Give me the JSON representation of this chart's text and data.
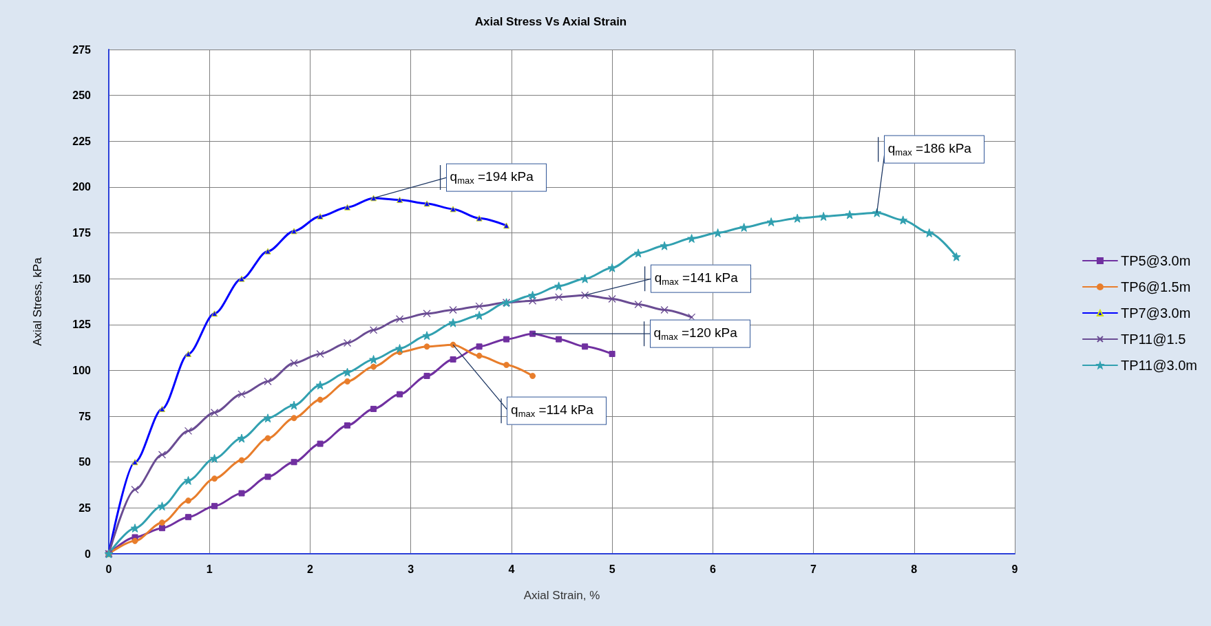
{
  "chart_data": {
    "type": "line",
    "title": "Axial Stress Vs Axial Strain",
    "xlabel": "Axial Strain, %",
    "ylabel": "Axial Stress, kPa",
    "xlim": [
      0,
      9
    ],
    "xticks": [
      0,
      1,
      2,
      3,
      4,
      5,
      6,
      7,
      8,
      9
    ],
    "ylim": [
      0,
      275
    ],
    "yticks": [
      0,
      25,
      50,
      75,
      100,
      125,
      150,
      175,
      200,
      225,
      250,
      275
    ],
    "grid": true,
    "legend": "right",
    "line_style": "solid",
    "series": [
      {
        "name": "TP5@3.0m",
        "color": "#7030a0",
        "marker": "square",
        "x": [
          0,
          0.26,
          0.53,
          0.79,
          1.05,
          1.32,
          1.58,
          1.84,
          2.1,
          2.37,
          2.63,
          2.89,
          3.16,
          3.42,
          3.68,
          3.95,
          4.21,
          4.47,
          4.73,
          5.0
        ],
        "values": [
          0,
          9,
          14,
          20,
          26,
          33,
          42,
          50,
          60,
          70,
          79,
          87,
          97,
          106,
          113,
          117,
          120,
          117,
          113,
          109
        ]
      },
      {
        "name": "TP6@1.5m",
        "color": "#e87d2b",
        "marker": "circle",
        "x": [
          0,
          0.26,
          0.53,
          0.79,
          1.05,
          1.32,
          1.58,
          1.84,
          2.1,
          2.37,
          2.63,
          2.89,
          3.16,
          3.42,
          3.68,
          3.95,
          4.21
        ],
        "values": [
          0,
          7,
          17,
          29,
          41,
          51,
          63,
          74,
          84,
          94,
          102,
          110,
          113,
          114,
          108,
          103,
          97
        ]
      },
      {
        "name": "TP7@3.0m",
        "color": "#0000ff",
        "marker": "triangle",
        "x": [
          0,
          0.26,
          0.53,
          0.79,
          1.05,
          1.32,
          1.58,
          1.84,
          2.1,
          2.37,
          2.63,
          2.89,
          3.16,
          3.42,
          3.68,
          3.95
        ],
        "values": [
          0,
          50,
          79,
          109,
          131,
          150,
          165,
          176,
          184,
          189,
          194,
          193,
          191,
          188,
          183,
          179
        ]
      },
      {
        "name": "TP11@1.5",
        "color": "#6a4c93",
        "marker": "cross",
        "x": [
          0,
          0.26,
          0.53,
          0.79,
          1.05,
          1.32,
          1.58,
          1.84,
          2.1,
          2.37,
          2.63,
          2.89,
          3.16,
          3.42,
          3.68,
          3.95,
          4.21,
          4.47,
          4.73,
          5.0,
          5.26,
          5.52,
          5.79
        ],
        "values": [
          0,
          35,
          54,
          67,
          77,
          87,
          94,
          104,
          109,
          115,
          122,
          128,
          131,
          133,
          135,
          137,
          138,
          140,
          141,
          139,
          136,
          133,
          129
        ]
      },
      {
        "name": "TP11@3.0m",
        "color": "#31a0b0",
        "marker": "star",
        "x": [
          0,
          0.26,
          0.53,
          0.79,
          1.05,
          1.32,
          1.58,
          1.84,
          2.1,
          2.37,
          2.63,
          2.89,
          3.16,
          3.42,
          3.68,
          3.95,
          4.21,
          4.47,
          4.73,
          5.0,
          5.26,
          5.52,
          5.79,
          6.05,
          6.31,
          6.58,
          6.84,
          7.1,
          7.36,
          7.63,
          7.89,
          8.15,
          8.42
        ],
        "values": [
          0,
          14,
          26,
          40,
          52,
          63,
          74,
          81,
          92,
          99,
          106,
          112,
          119,
          126,
          130,
          137,
          141,
          146,
          150,
          156,
          164,
          168,
          172,
          175,
          178,
          181,
          183,
          184,
          185,
          186,
          182,
          175,
          162
        ]
      }
    ],
    "annotations": [
      {
        "text": "q$_{max}$ =194 kPa",
        "x": 2.63,
        "y": 194
      },
      {
        "text": "q$_{max}$ =114 kPa",
        "x": 3.42,
        "y": 114
      },
      {
        "text": "q$_{max}$ =120 kPa",
        "x": 4.21,
        "y": 120
      },
      {
        "text": "q$_{max}$ =141 kPa",
        "x": 4.73,
        "y": 141
      },
      {
        "text": "q$_{max}$ =186 kPa",
        "x": 7.63,
        "y": 186
      }
    ]
  }
}
